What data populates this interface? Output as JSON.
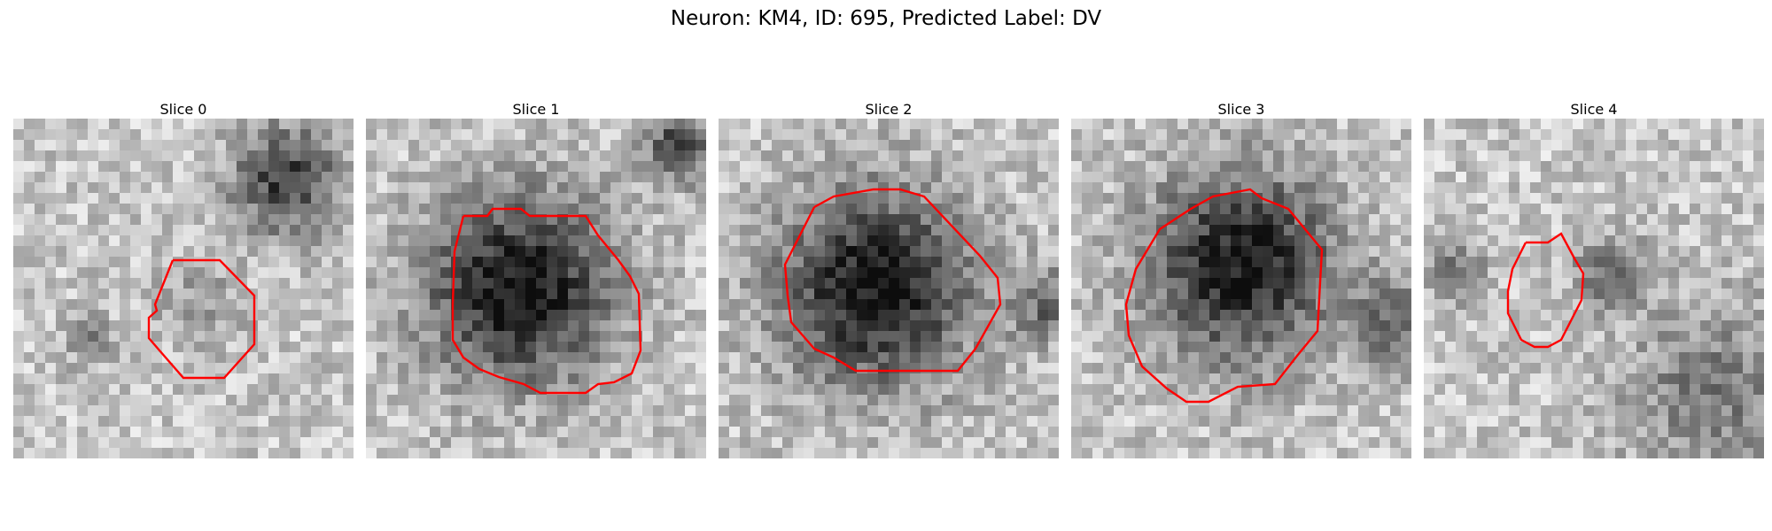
{
  "figure": {
    "title": "Neuron: KM4, ID: 695, Predicted Label: DV",
    "contour_color": "#ff0000",
    "panels": [
      {
        "label": "Slice 0"
      },
      {
        "label": "Slice 1"
      },
      {
        "label": "Slice 2"
      },
      {
        "label": "Slice 3"
      },
      {
        "label": "Slice 4"
      }
    ]
  }
}
